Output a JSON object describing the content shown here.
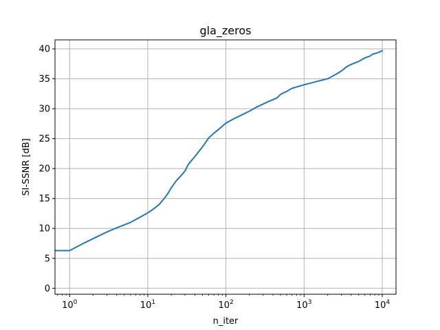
{
  "chart_data": {
    "type": "line",
    "title": "gla_zeros",
    "xlabel": "n_iter",
    "ylabel": "SI-SSNR [dB]",
    "x_scale": "log",
    "xlim": [
      0.65,
      15000
    ],
    "ylim": [
      -1,
      41.5
    ],
    "grid": true,
    "line_color": "#1f77b4",
    "x_ticks": [
      {
        "base": "10",
        "exp": "0",
        "value": 1
      },
      {
        "base": "10",
        "exp": "1",
        "value": 10
      },
      {
        "base": "10",
        "exp": "2",
        "value": 100
      },
      {
        "base": "10",
        "exp": "3",
        "value": 1000
      },
      {
        "base": "10",
        "exp": "4",
        "value": 10000
      }
    ],
    "y_ticks": [
      0,
      5,
      10,
      15,
      20,
      25,
      30,
      35,
      40
    ],
    "series": [
      {
        "points": [
          [
            0.65,
            6.3
          ],
          [
            1,
            6.3
          ],
          [
            1.5,
            7.5
          ],
          [
            2,
            8.3
          ],
          [
            3,
            9.4
          ],
          [
            4,
            10.1
          ],
          [
            5,
            10.6
          ],
          [
            6,
            11.0
          ],
          [
            8,
            11.9
          ],
          [
            10,
            12.6
          ],
          [
            12,
            13.3
          ],
          [
            14,
            14.0
          ],
          [
            16,
            14.9
          ],
          [
            18,
            15.8
          ],
          [
            20,
            16.8
          ],
          [
            23,
            17.9
          ],
          [
            27,
            18.9
          ],
          [
            30,
            19.6
          ],
          [
            33,
            20.7
          ],
          [
            40,
            22.0
          ],
          [
            50,
            23.6
          ],
          [
            60,
            25.1
          ],
          [
            70,
            25.9
          ],
          [
            80,
            26.5
          ],
          [
            100,
            27.6
          ],
          [
            130,
            28.4
          ],
          [
            200,
            29.6
          ],
          [
            250,
            30.3
          ],
          [
            350,
            31.2
          ],
          [
            450,
            31.8
          ],
          [
            500,
            32.4
          ],
          [
            600,
            32.9
          ],
          [
            700,
            33.4
          ],
          [
            1000,
            34.0
          ],
          [
            1500,
            34.6
          ],
          [
            2000,
            35.0
          ],
          [
            2600,
            35.8
          ],
          [
            3000,
            36.3
          ],
          [
            3500,
            37.0
          ],
          [
            4000,
            37.4
          ],
          [
            5000,
            37.9
          ],
          [
            6000,
            38.5
          ],
          [
            7000,
            38.8
          ],
          [
            7500,
            39.1
          ],
          [
            9000,
            39.4
          ],
          [
            10000,
            39.7
          ]
        ]
      }
    ]
  }
}
